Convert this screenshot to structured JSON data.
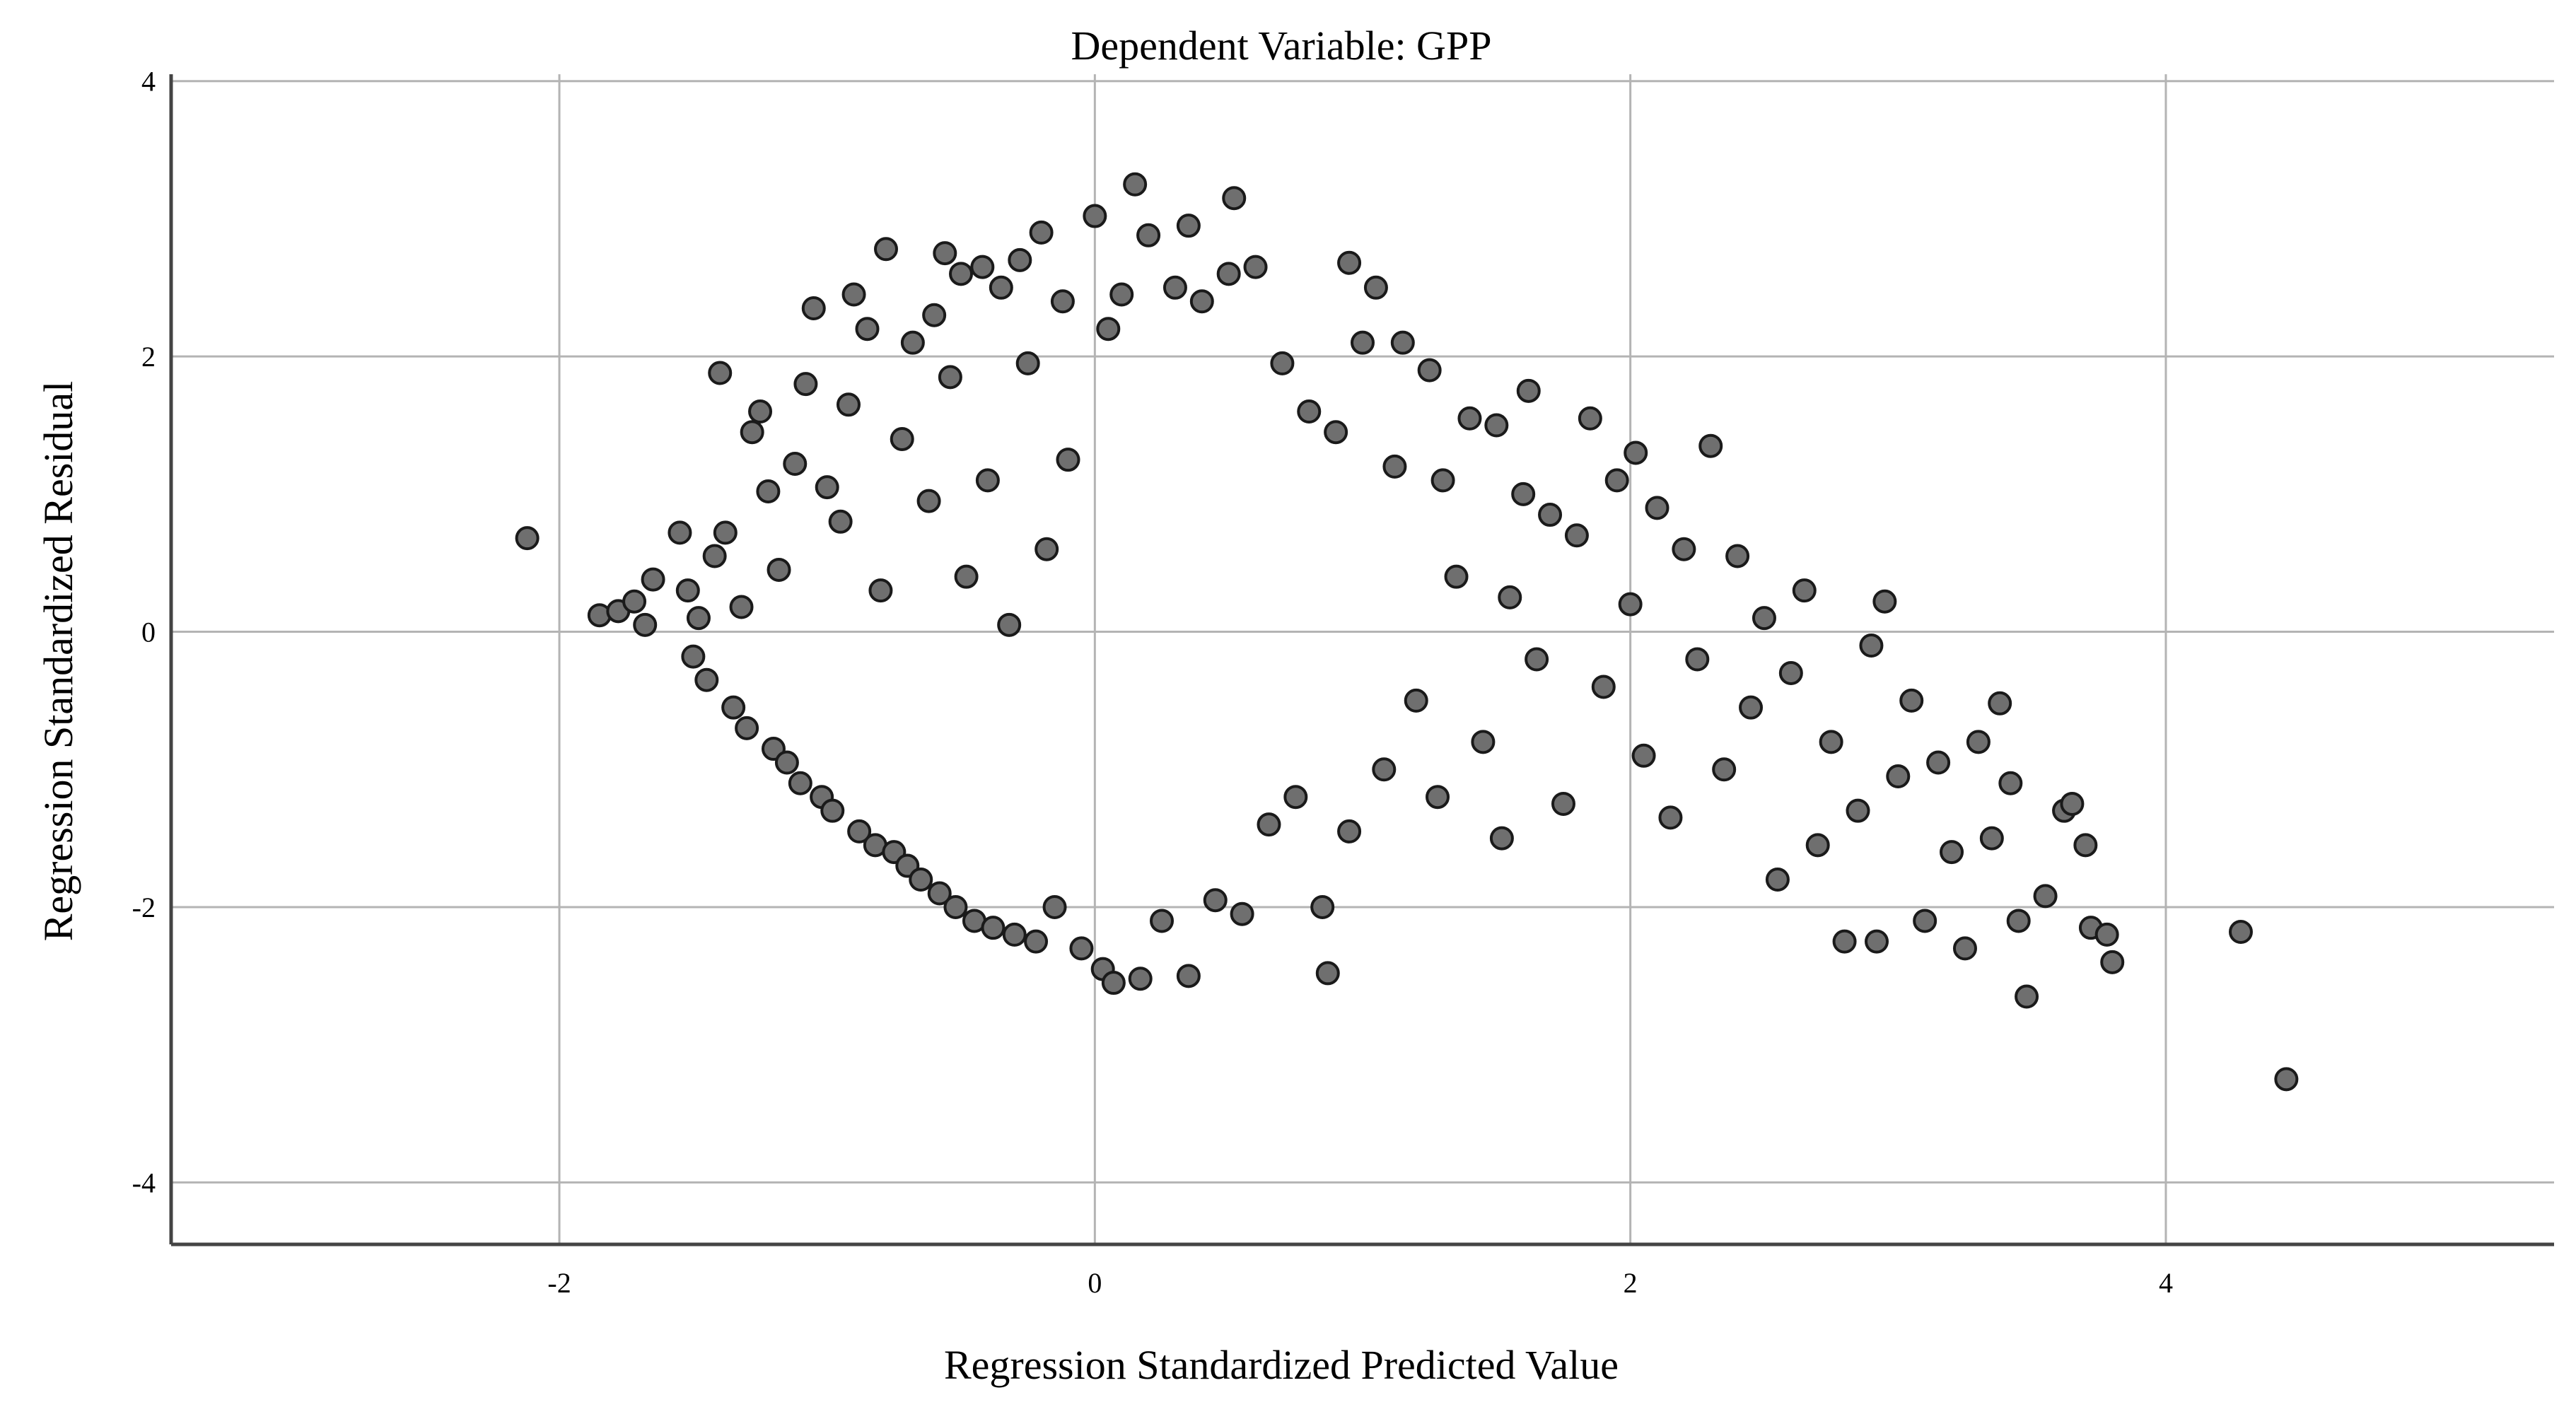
{
  "chart_data": {
    "type": "scatter",
    "title": "Dependent Variable: GPP",
    "xlabel": "Regression Standardized Predicted Value",
    "ylabel": "Regression Standardized Residual",
    "xlim": [
      -3.45,
      5.45
    ],
    "ylim": [
      -4.45,
      4.05
    ],
    "x_ticks": [
      -2,
      0,
      2,
      4
    ],
    "y_ticks": [
      -4,
      -2,
      0,
      2,
      4
    ],
    "grid": true,
    "colors": {
      "marker_fill": "#6f6f6f",
      "marker_edge": "#1a1a1a",
      "grid": "#b4b4b4",
      "axis": "#444444",
      "background": "#ffffff"
    },
    "points": [
      [
        -2.12,
        0.68
      ],
      [
        -1.85,
        0.12
      ],
      [
        -1.78,
        0.15
      ],
      [
        -1.72,
        0.22
      ],
      [
        -1.68,
        0.05
      ],
      [
        -1.65,
        0.38
      ],
      [
        -1.55,
        0.72
      ],
      [
        -1.52,
        0.3
      ],
      [
        -1.5,
        -0.18
      ],
      [
        -1.48,
        0.1
      ],
      [
        -1.45,
        -0.35
      ],
      [
        -1.42,
        0.55
      ],
      [
        -1.4,
        1.88
      ],
      [
        -1.38,
        0.72
      ],
      [
        -1.35,
        -0.55
      ],
      [
        -1.32,
        0.18
      ],
      [
        -1.3,
        -0.7
      ],
      [
        -1.28,
        1.45
      ],
      [
        -1.25,
        1.6
      ],
      [
        -1.22,
        1.02
      ],
      [
        -1.2,
        -0.85
      ],
      [
        -1.18,
        0.45
      ],
      [
        -1.15,
        -0.95
      ],
      [
        -1.12,
        1.22
      ],
      [
        -1.1,
        -1.1
      ],
      [
        -1.08,
        1.8
      ],
      [
        -1.05,
        2.35
      ],
      [
        -1.02,
        -1.2
      ],
      [
        -1.0,
        1.05
      ],
      [
        -0.98,
        -1.3
      ],
      [
        -0.95,
        0.8
      ],
      [
        -0.92,
        1.65
      ],
      [
        -0.9,
        2.45
      ],
      [
        -0.88,
        -1.45
      ],
      [
        -0.85,
        2.2
      ],
      [
        -0.82,
        -1.55
      ],
      [
        -0.8,
        0.3
      ],
      [
        -0.78,
        2.78
      ],
      [
        -0.75,
        -1.6
      ],
      [
        -0.72,
        1.4
      ],
      [
        -0.7,
        -1.7
      ],
      [
        -0.68,
        2.1
      ],
      [
        -0.65,
        -1.8
      ],
      [
        -0.62,
        0.95
      ],
      [
        -0.6,
        2.3
      ],
      [
        -0.58,
        -1.9
      ],
      [
        -0.56,
        2.75
      ],
      [
        -0.54,
        1.85
      ],
      [
        -0.52,
        -2.0
      ],
      [
        -0.5,
        2.6
      ],
      [
        -0.48,
        0.4
      ],
      [
        -0.45,
        -2.1
      ],
      [
        -0.42,
        2.65
      ],
      [
        -0.4,
        1.1
      ],
      [
        -0.38,
        -2.15
      ],
      [
        -0.35,
        2.5
      ],
      [
        -0.32,
        0.05
      ],
      [
        -0.3,
        -2.2
      ],
      [
        -0.28,
        2.7
      ],
      [
        -0.25,
        1.95
      ],
      [
        -0.22,
        -2.25
      ],
      [
        -0.2,
        2.9
      ],
      [
        -0.18,
        0.6
      ],
      [
        -0.15,
        -2.0
      ],
      [
        -0.12,
        2.4
      ],
      [
        -0.1,
        1.25
      ],
      [
        -0.05,
        -2.3
      ],
      [
        0.0,
        3.02
      ],
      [
        0.03,
        -2.45
      ],
      [
        0.05,
        2.2
      ],
      [
        0.07,
        -2.55
      ],
      [
        0.1,
        2.45
      ],
      [
        0.15,
        3.25
      ],
      [
        0.17,
        -2.52
      ],
      [
        0.2,
        2.88
      ],
      [
        0.25,
        -2.1
      ],
      [
        0.3,
        2.5
      ],
      [
        0.35,
        2.95
      ],
      [
        0.35,
        -2.5
      ],
      [
        0.4,
        2.4
      ],
      [
        0.45,
        -1.95
      ],
      [
        0.5,
        2.6
      ],
      [
        0.52,
        3.15
      ],
      [
        0.55,
        -2.05
      ],
      [
        0.6,
        2.65
      ],
      [
        0.65,
        -1.4
      ],
      [
        0.7,
        1.95
      ],
      [
        0.75,
        -1.2
      ],
      [
        0.8,
        1.6
      ],
      [
        0.85,
        -2.0
      ],
      [
        0.87,
        -2.48
      ],
      [
        0.9,
        1.45
      ],
      [
        0.95,
        2.68
      ],
      [
        0.95,
        -1.45
      ],
      [
        1.0,
        2.1
      ],
      [
        1.05,
        2.5
      ],
      [
        1.08,
        -1.0
      ],
      [
        1.12,
        1.2
      ],
      [
        1.15,
        2.1
      ],
      [
        1.2,
        -0.5
      ],
      [
        1.25,
        1.9
      ],
      [
        1.28,
        -1.2
      ],
      [
        1.3,
        1.1
      ],
      [
        1.35,
        0.4
      ],
      [
        1.4,
        1.55
      ],
      [
        1.45,
        -0.8
      ],
      [
        1.5,
        1.5
      ],
      [
        1.52,
        -1.5
      ],
      [
        1.55,
        0.25
      ],
      [
        1.6,
        1.0
      ],
      [
        1.62,
        1.75
      ],
      [
        1.65,
        -0.2
      ],
      [
        1.7,
        0.85
      ],
      [
        1.75,
        -1.25
      ],
      [
        1.8,
        0.7
      ],
      [
        1.85,
        1.55
      ],
      [
        1.9,
        -0.4
      ],
      [
        1.95,
        1.1
      ],
      [
        2.0,
        0.2
      ],
      [
        2.02,
        1.3
      ],
      [
        2.05,
        -0.9
      ],
      [
        2.1,
        0.9
      ],
      [
        2.15,
        -1.35
      ],
      [
        2.2,
        0.6
      ],
      [
        2.25,
        -0.2
      ],
      [
        2.3,
        1.35
      ],
      [
        2.35,
        -1.0
      ],
      [
        2.4,
        0.55
      ],
      [
        2.45,
        -0.55
      ],
      [
        2.5,
        0.1
      ],
      [
        2.55,
        -1.8
      ],
      [
        2.6,
        -0.3
      ],
      [
        2.65,
        0.3
      ],
      [
        2.7,
        -1.55
      ],
      [
        2.75,
        -0.8
      ],
      [
        2.8,
        -2.25
      ],
      [
        2.85,
        -1.3
      ],
      [
        2.9,
        -0.1
      ],
      [
        2.92,
        -2.25
      ],
      [
        2.95,
        0.22
      ],
      [
        3.0,
        -1.05
      ],
      [
        3.05,
        -0.5
      ],
      [
        3.1,
        -2.1
      ],
      [
        3.15,
        -0.95
      ],
      [
        3.2,
        -1.6
      ],
      [
        3.25,
        -2.3
      ],
      [
        3.3,
        -0.8
      ],
      [
        3.35,
        -1.5
      ],
      [
        3.38,
        -0.52
      ],
      [
        3.42,
        -1.1
      ],
      [
        3.45,
        -2.1
      ],
      [
        3.48,
        -2.65
      ],
      [
        3.55,
        -1.92
      ],
      [
        3.62,
        -1.3
      ],
      [
        3.65,
        -1.25
      ],
      [
        3.7,
        -1.55
      ],
      [
        3.72,
        -2.15
      ],
      [
        3.78,
        -2.2
      ],
      [
        3.8,
        -2.4
      ],
      [
        4.28,
        -2.18
      ],
      [
        4.45,
        -3.25
      ]
    ]
  }
}
